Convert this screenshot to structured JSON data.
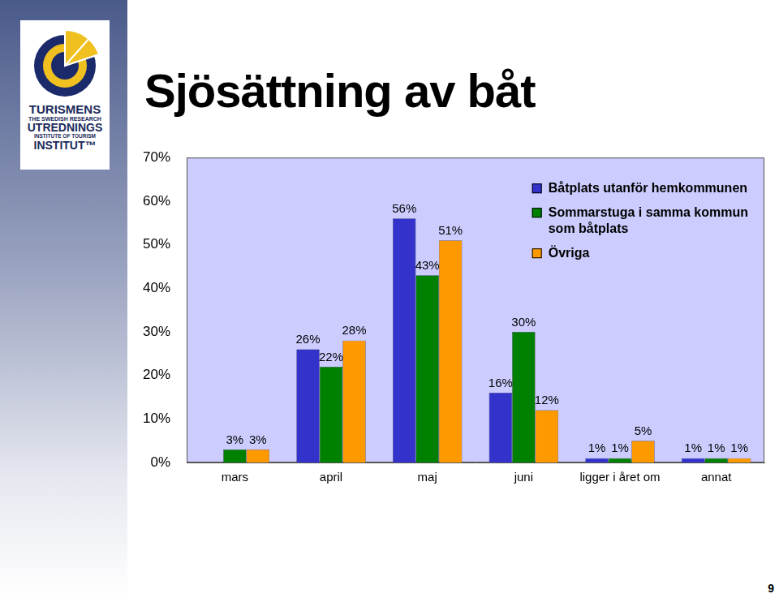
{
  "chart_data": {
    "type": "bar",
    "title": "Sjösättning av båt",
    "categories": [
      "mars",
      "april",
      "maj",
      "juni",
      "ligger i året om",
      "annat"
    ],
    "series": [
      {
        "name": "Båtplats utanför hemkommunen",
        "color": "#3333cc",
        "values": [
          null,
          26,
          56,
          16,
          1,
          1
        ],
        "value_labels": [
          null,
          "26%",
          "56%",
          "16%",
          "1%",
          "1%"
        ]
      },
      {
        "name": "Sommarstuga i samma kommun som båtplats",
        "color": "#008000",
        "values": [
          3,
          22,
          43,
          30,
          1,
          1
        ],
        "value_labels": [
          "3%",
          "22%",
          "43%",
          "30%",
          "1%",
          "1%"
        ]
      },
      {
        "name": "Övriga",
        "color": "#ff9900",
        "values": [
          3,
          28,
          51,
          12,
          5,
          1
        ],
        "value_labels": [
          "3%",
          "28%",
          "51%",
          "12%",
          "5%",
          "1%"
        ]
      }
    ],
    "ylim": [
      0,
      70
    ],
    "yticks": [
      {
        "value": 0,
        "label": "0%"
      },
      {
        "value": 10,
        "label": "10%"
      },
      {
        "value": 20,
        "label": "20%"
      },
      {
        "value": 30,
        "label": "30%"
      },
      {
        "value": 40,
        "label": "40%"
      },
      {
        "value": 50,
        "label": "50%"
      },
      {
        "value": 60,
        "label": "60%"
      },
      {
        "value": 70,
        "label": "70%"
      }
    ],
    "grid": false,
    "legend": "upper right",
    "data_labels": true
  },
  "logo": {
    "lines": [
      "TURISMENS",
      "THE SWEDISH RESEARCH",
      "UTREDNINGS",
      "INSTITUTE OF TOURISM",
      "INSTITUT™"
    ]
  },
  "page_number": "9"
}
